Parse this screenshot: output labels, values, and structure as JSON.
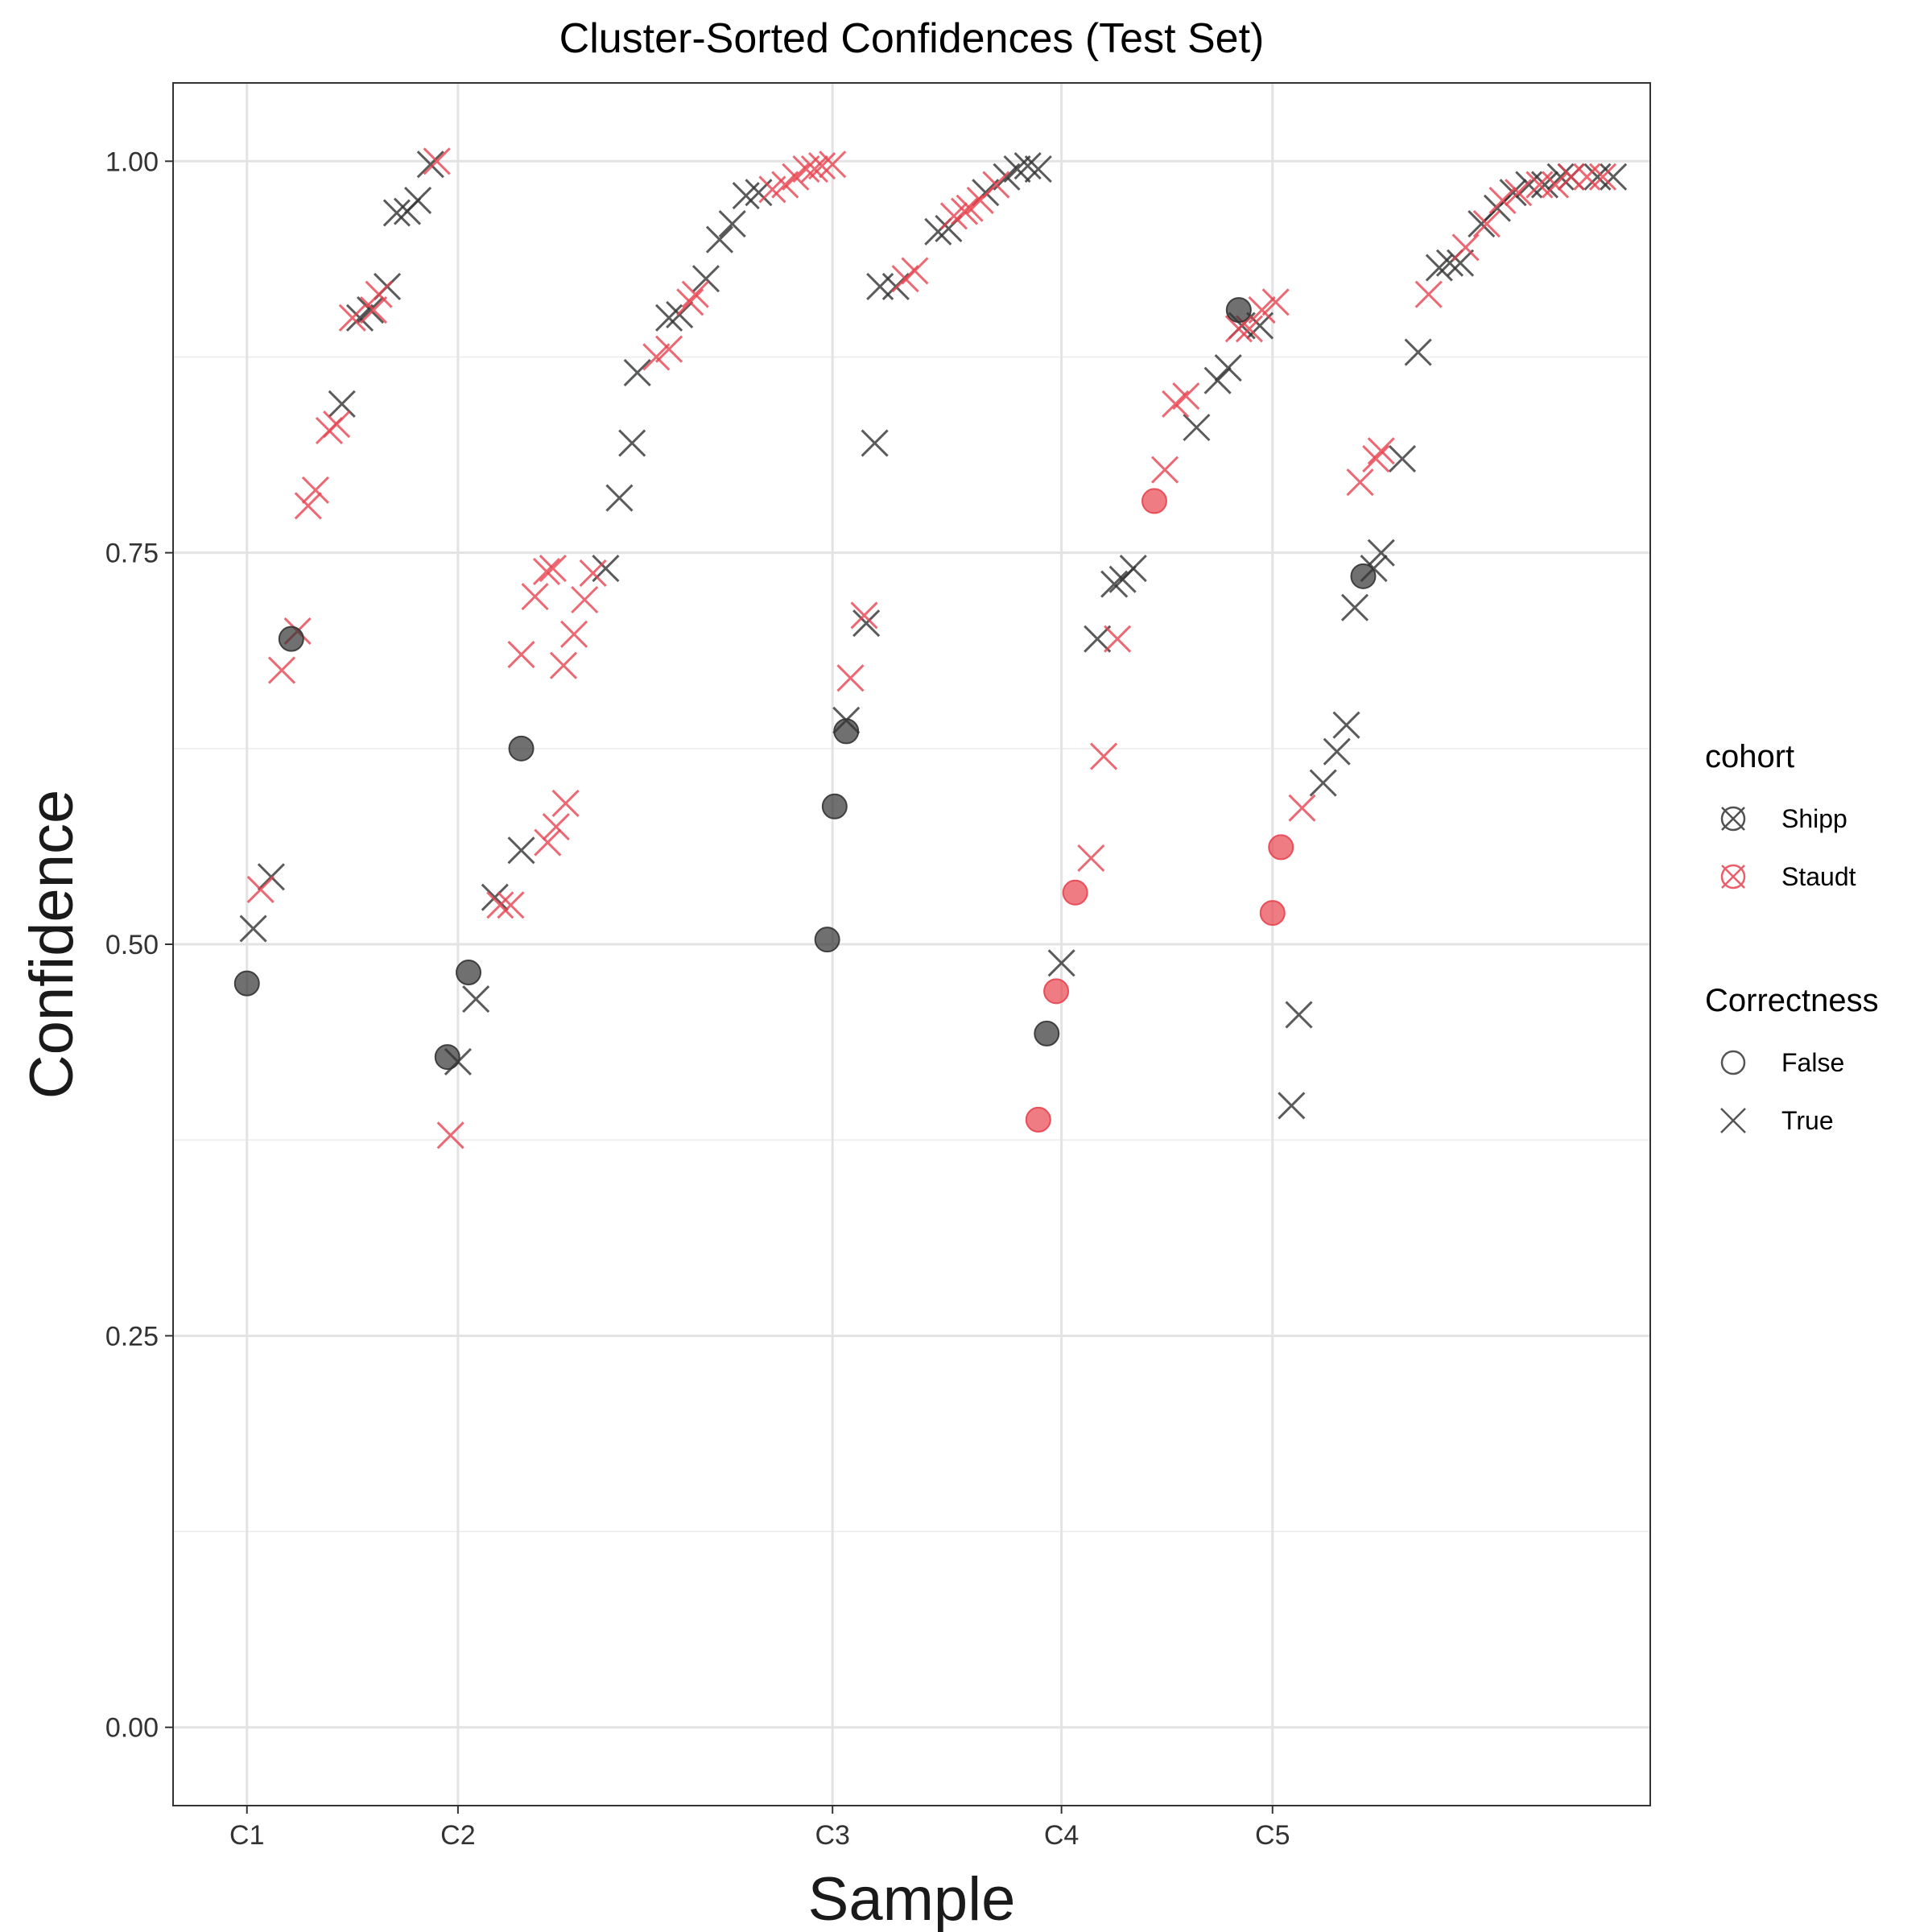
{
  "chart_data": {
    "type": "scatter",
    "title": "Cluster-Sorted Confidences (Test Set)",
    "xlabel": "Sample",
    "ylabel": "Confidence",
    "ylim": [
      -0.05,
      1.05
    ],
    "xlim": [
      -0.7,
      13.3
    ],
    "x_ticks": [
      {
        "label": "C1",
        "value": 0
      },
      {
        "label": "C2",
        "value": 2
      },
      {
        "label": "C3",
        "value": 5.55
      },
      {
        "label": "C4",
        "value": 7.72
      },
      {
        "label": "C5",
        "value": 9.72
      }
    ],
    "y_ticks": [
      {
        "label": "0.00",
        "value": 0
      },
      {
        "label": "0.25",
        "value": 0.25
      },
      {
        "label": "0.50",
        "value": 0.5
      },
      {
        "label": "0.75",
        "value": 0.75
      },
      {
        "label": "1.00",
        "value": 1
      }
    ],
    "grid": true,
    "legend_position": "right",
    "legend": {
      "cohort": {
        "title": "cohort",
        "items": [
          {
            "label": "Shipp",
            "color": "#333333"
          },
          {
            "label": "Staudt",
            "color": "#E8434F"
          }
        ]
      },
      "correctness": {
        "title": "Correctness",
        "items": [
          {
            "label": "False",
            "shape": "circle"
          },
          {
            "label": "True",
            "shape": "x"
          }
        ]
      }
    },
    "colors": {
      "Shipp": "#333333",
      "Staudt": "#E8434F"
    },
    "series": [
      {
        "cohort": "Shipp",
        "correct": true,
        "points": [
          [
            0.06,
            0.51
          ],
          [
            0.23,
            0.543
          ],
          [
            0.9,
            0.845
          ],
          [
            1.07,
            0.9
          ],
          [
            1.17,
            0.905
          ],
          [
            1.33,
            0.92
          ],
          [
            1.42,
            0.967
          ],
          [
            1.52,
            0.968
          ],
          [
            1.62,
            0.975
          ],
          [
            1.74,
            0.998
          ],
          [
            2.0,
            0.425
          ],
          [
            2.17,
            0.465
          ],
          [
            2.35,
            0.53
          ],
          [
            2.6,
            0.56
          ],
          [
            3.4,
            0.74
          ],
          [
            3.53,
            0.785
          ],
          [
            3.65,
            0.82
          ],
          [
            3.7,
            0.865
          ],
          [
            4.0,
            0.9
          ],
          [
            4.1,
            0.902
          ],
          [
            4.35,
            0.925
          ],
          [
            4.48,
            0.95
          ],
          [
            4.6,
            0.96
          ],
          [
            4.73,
            0.978
          ],
          [
            4.85,
            0.98
          ],
          [
            5.68,
            0.643
          ],
          [
            5.87,
            0.705
          ],
          [
            5.95,
            0.82
          ],
          [
            6.0,
            0.92
          ],
          [
            6.15,
            0.92
          ],
          [
            6.55,
            0.955
          ],
          [
            6.65,
            0.957
          ],
          [
            7.0,
            0.98
          ],
          [
            7.2,
            0.99
          ],
          [
            7.3,
            0.995
          ],
          [
            7.4,
            0.997
          ],
          [
            7.5,
            0.995
          ],
          [
            7.72,
            0.488
          ],
          [
            8.06,
            0.695
          ],
          [
            8.22,
            0.73
          ],
          [
            8.3,
            0.733
          ],
          [
            8.4,
            0.74
          ],
          [
            9.0,
            0.83
          ],
          [
            9.2,
            0.86
          ],
          [
            9.3,
            0.868
          ],
          [
            9.43,
            0.895
          ],
          [
            9.6,
            0.895
          ],
          [
            9.9,
            0.397
          ],
          [
            9.97,
            0.455
          ],
          [
            10.2,
            0.603
          ],
          [
            10.33,
            0.623
          ],
          [
            10.42,
            0.64
          ],
          [
            10.5,
            0.715
          ],
          [
            10.68,
            0.74
          ],
          [
            10.75,
            0.75
          ],
          [
            10.95,
            0.81
          ],
          [
            11.1,
            0.878
          ],
          [
            11.3,
            0.932
          ],
          [
            11.4,
            0.935
          ],
          [
            11.5,
            0.935
          ],
          [
            11.7,
            0.96
          ],
          [
            11.85,
            0.97
          ],
          [
            12.0,
            0.98
          ],
          [
            12.15,
            0.985
          ],
          [
            12.3,
            0.985
          ],
          [
            12.45,
            0.99
          ],
          [
            12.55,
            0.99
          ],
          [
            12.8,
            0.99
          ],
          [
            12.95,
            0.99
          ]
        ]
      },
      {
        "cohort": "Staudt",
        "correct": true,
        "points": [
          [
            0.13,
            0.535
          ],
          [
            0.33,
            0.675
          ],
          [
            0.48,
            0.7
          ],
          [
            0.58,
            0.78
          ],
          [
            0.65,
            0.79
          ],
          [
            0.78,
            0.828
          ],
          [
            0.85,
            0.832
          ],
          [
            1.0,
            0.9
          ],
          [
            1.2,
            0.905
          ],
          [
            1.25,
            0.915
          ],
          [
            1.8,
            1.0
          ],
          [
            2.6,
            0.685
          ],
          [
            2.73,
            0.722
          ],
          [
            2.84,
            0.738
          ],
          [
            2.9,
            0.74
          ],
          [
            1.93,
            0.378
          ],
          [
            2.4,
            0.525
          ],
          [
            2.5,
            0.525
          ],
          [
            2.85,
            0.565
          ],
          [
            2.93,
            0.575
          ],
          [
            3.02,
            0.59
          ],
          [
            3.0,
            0.678
          ],
          [
            3.1,
            0.698
          ],
          [
            3.2,
            0.72
          ],
          [
            3.28,
            0.737
          ],
          [
            3.88,
            0.875
          ],
          [
            4.0,
            0.88
          ],
          [
            4.2,
            0.91
          ],
          [
            4.25,
            0.915
          ],
          [
            4.98,
            0.982
          ],
          [
            5.1,
            0.985
          ],
          [
            5.2,
            0.99
          ],
          [
            5.3,
            0.995
          ],
          [
            5.38,
            0.995
          ],
          [
            5.45,
            0.997
          ],
          [
            5.55,
            0.998
          ],
          [
            5.72,
            0.67
          ],
          [
            5.85,
            0.71
          ],
          [
            6.24,
            0.925
          ],
          [
            6.33,
            0.93
          ],
          [
            6.7,
            0.965
          ],
          [
            6.8,
            0.968
          ],
          [
            6.85,
            0.97
          ],
          [
            6.95,
            0.975
          ],
          [
            7.1,
            0.985
          ],
          [
            8.0,
            0.555
          ],
          [
            8.12,
            0.62
          ],
          [
            8.25,
            0.695
          ],
          [
            8.7,
            0.803
          ],
          [
            8.8,
            0.845
          ],
          [
            8.9,
            0.85
          ],
          [
            9.4,
            0.893
          ],
          [
            9.5,
            0.893
          ],
          [
            9.62,
            0.905
          ],
          [
            9.75,
            0.91
          ],
          [
            10.0,
            0.587
          ],
          [
            10.55,
            0.795
          ],
          [
            10.7,
            0.81
          ],
          [
            10.75,
            0.815
          ],
          [
            11.2,
            0.915
          ],
          [
            11.55,
            0.945
          ],
          [
            11.75,
            0.96
          ],
          [
            11.9,
            0.975
          ],
          [
            12.05,
            0.98
          ],
          [
            12.25,
            0.985
          ],
          [
            12.4,
            0.985
          ],
          [
            12.55,
            0.99
          ],
          [
            12.7,
            0.99
          ],
          [
            12.85,
            0.99
          ]
        ]
      },
      {
        "cohort": "Shipp",
        "correct": false,
        "points": [
          [
            0.0,
            0.475
          ],
          [
            0.42,
            0.695
          ],
          [
            1.9,
            0.428
          ],
          [
            2.1,
            0.482
          ],
          [
            2.6,
            0.625
          ],
          [
            5.5,
            0.503
          ],
          [
            5.57,
            0.588
          ],
          [
            5.68,
            0.636
          ],
          [
            7.58,
            0.443
          ],
          [
            9.4,
            0.905
          ],
          [
            10.58,
            0.735
          ]
        ]
      },
      {
        "cohort": "Staudt",
        "correct": false,
        "points": [
          [
            7.5,
            0.388
          ],
          [
            7.67,
            0.47
          ],
          [
            7.85,
            0.533
          ],
          [
            8.6,
            0.783
          ],
          [
            9.72,
            0.52
          ],
          [
            9.8,
            0.562
          ]
        ]
      }
    ]
  }
}
